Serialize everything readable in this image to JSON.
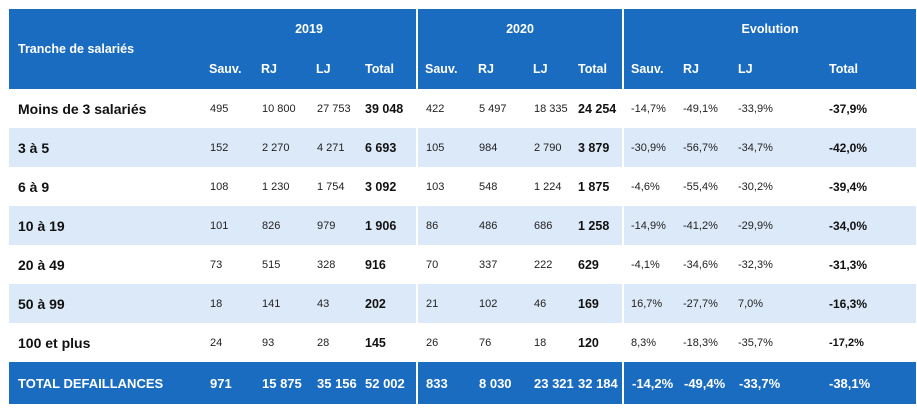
{
  "header": {
    "label_col": "Tranche de salariés",
    "years": [
      "2019",
      "2020",
      "Evolution"
    ],
    "subcols": [
      "Sauv.",
      "RJ",
      "LJ",
      "Total"
    ]
  },
  "rows": [
    {
      "label": "Moins de 3 salariés",
      "v": [
        "495",
        "10 800",
        "27 753",
        "39 048",
        "422",
        "5 497",
        "18 335",
        "24 254",
        "-14,7%",
        "-49,1%",
        "-33,9%",
        "-37,9%"
      ]
    },
    {
      "label": "3 à 5",
      "v": [
        "152",
        "2 270",
        "4 271",
        "6 693",
        "105",
        "984",
        "2 790",
        "3 879",
        "-30,9%",
        "-56,7%",
        "-34,7%",
        "-42,0%"
      ]
    },
    {
      "label": "6 à 9",
      "v": [
        "108",
        "1 230",
        "1 754",
        "3 092",
        "103",
        "548",
        "1 224",
        "1 875",
        "-4,6%",
        "-55,4%",
        "-30,2%",
        "-39,4%"
      ]
    },
    {
      "label": "10 à 19",
      "v": [
        "101",
        "826",
        "979",
        "1 906",
        "86",
        "486",
        "686",
        "1 258",
        "-14,9%",
        "-41,2%",
        "-29,9%",
        "-34,0%"
      ]
    },
    {
      "label": "20 à 49",
      "v": [
        "73",
        "515",
        "328",
        "916",
        "70",
        "337",
        "222",
        "629",
        "-4,1%",
        "-34,6%",
        "-32,3%",
        "-31,3%"
      ]
    },
    {
      "label": "50 à 99",
      "v": [
        "18",
        "141",
        "43",
        "202",
        "21",
        "102",
        "46",
        "169",
        "16,7%",
        "-27,7%",
        "7,0%",
        "-16,3%"
      ]
    },
    {
      "label": "100 et plus",
      "v": [
        "24",
        "93",
        "28",
        "145",
        "26",
        "76",
        "18",
        "120",
        "8,3%",
        "-18,3%",
        "-35,7%",
        "-17,2%"
      ]
    }
  ],
  "footer": {
    "label": "TOTAL DEFAILLANCES",
    "v": [
      "971",
      "15 875",
      "35 156",
      "52 002",
      "833",
      "8 030",
      "23 321",
      "32 184",
      "-14,2%",
      "-49,4%",
      "-33,7%",
      "-38,1%"
    ]
  }
}
